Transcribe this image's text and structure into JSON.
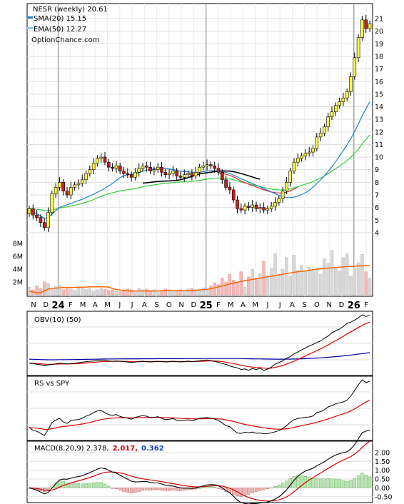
{
  "chart_data": {
    "type": "stock-chart",
    "header": {
      "title": "NESR (weekly) 20.61",
      "source": "OptionChance.com",
      "legend": [
        {
          "name": "SMA(20) 15.15",
          "color": "#1e7fd0"
        },
        {
          "name": "EMA(50) 12.27",
          "color": "#8fd0f0"
        }
      ]
    },
    "price_axis": {
      "min": 3.2,
      "max": 21.8,
      "ticks": [
        "4",
        "5",
        "6",
        "7",
        "8",
        "9",
        "10",
        "11",
        "12",
        "13",
        "14",
        "15",
        "16",
        "17",
        "18",
        "19",
        "20",
        "21"
      ]
    },
    "volume_axis": {
      "max_m": 10,
      "ticks": [
        "2M",
        "4M",
        "6M",
        "8M"
      ]
    },
    "x_labels": [
      {
        "t": "N"
      },
      {
        "t": "D"
      },
      {
        "t": "24",
        "bold": true
      },
      {
        "t": "F"
      },
      {
        "t": "M"
      },
      {
        "t": "A"
      },
      {
        "t": "M"
      },
      {
        "t": "J"
      },
      {
        "t": "J"
      },
      {
        "t": "A"
      },
      {
        "t": "S"
      },
      {
        "t": "O"
      },
      {
        "t": "N"
      },
      {
        "t": "D"
      },
      {
        "t": "25",
        "bold": true
      },
      {
        "t": "F"
      },
      {
        "t": "M"
      },
      {
        "t": "A"
      },
      {
        "t": "M"
      },
      {
        "t": "J"
      },
      {
        "t": "J"
      },
      {
        "t": "A"
      },
      {
        "t": "S"
      },
      {
        "t": "O"
      },
      {
        "t": "N"
      },
      {
        "t": "D"
      },
      {
        "t": "26",
        "bold": true
      },
      {
        "t": "F"
      }
    ],
    "weekly_close": [
      5.9,
      5.4,
      5.2,
      4.8,
      4.4,
      5.6,
      7.1,
      7.6,
      8.0,
      7.3,
      7.0,
      7.6,
      7.8,
      7.9,
      8.2,
      8.7,
      9.0,
      9.5,
      9.9,
      10.0,
      9.6,
      9.2,
      9.1,
      9.3,
      8.9,
      8.7,
      8.6,
      8.4,
      8.8,
      9.1,
      9.3,
      9.2,
      8.9,
      9.0,
      9.2,
      8.8,
      8.6,
      8.7,
      8.9,
      8.5,
      8.4,
      8.6,
      8.7,
      8.5,
      8.8,
      9.2,
      9.3,
      9.4,
      9.3,
      9.1,
      8.8,
      8.2,
      7.6,
      7.4,
      6.6,
      5.9,
      5.8,
      6.1,
      6.0,
      6.2,
      5.9,
      6.0,
      5.8,
      5.9,
      6.1,
      6.4,
      6.7,
      7.3,
      8.0,
      8.9,
      9.6,
      9.9,
      10.1,
      10.3,
      10.4,
      10.7,
      11.6,
      11.9,
      12.4,
      13.2,
      13.6,
      14.1,
      14.4,
      14.7,
      15.2,
      16.4,
      17.9,
      19.5,
      20.9,
      20.2,
      20.6
    ],
    "volume_mil": [
      1.2,
      0.8,
      1.4,
      1.0,
      2.0,
      1.8,
      0.9,
      1.3,
      1.5,
      0.8,
      1.0,
      0.9,
      0.7,
      1.1,
      1.2,
      0.9,
      1.0,
      0.6,
      0.8,
      1.0,
      0.9,
      0.7,
      0.8,
      0.6,
      0.5,
      0.7,
      0.9,
      0.8,
      0.6,
      1.0,
      0.8,
      0.9,
      0.7,
      0.8,
      0.6,
      0.5,
      0.9,
      0.8,
      0.7,
      0.6,
      0.8,
      0.7,
      0.9,
      1.0,
      0.8,
      0.9,
      1.1,
      0.8,
      1.4,
      1.9,
      1.6,
      2.6,
      2.0,
      3.2,
      2.3,
      1.8,
      3.6,
      1.2,
      2.8,
      4.0,
      2.6,
      3.3,
      5.2,
      3.0,
      4.1,
      6.4,
      3.2,
      4.0,
      5.8,
      3.0,
      6.2,
      3.8,
      4.6,
      3.7,
      4.3,
      3.6,
      4.2,
      3.2,
      5.6,
      4.9,
      6.9,
      4.1,
      3.7,
      5.8,
      6.4,
      2.9,
      4.2,
      5.0,
      6.3,
      3.6,
      2.6
    ],
    "volume_avg_mil": [
      0.55,
      0.45,
      0.3,
      0.35,
      0.6,
      0.9,
      1.0,
      1.05,
      1.1,
      1.15,
      1.15,
      1.15,
      1.15,
      1.2,
      1.2,
      1.2,
      1.25,
      1.25,
      1.25,
      1.25,
      1.25,
      1.2,
      1.0,
      0.85,
      0.75,
      0.7,
      0.65,
      0.6,
      0.6,
      0.6,
      0.6,
      0.6,
      0.6,
      0.6,
      0.62,
      0.62,
      0.62,
      0.65,
      0.65,
      0.65,
      0.65,
      0.65,
      0.65,
      0.7,
      0.7,
      0.75,
      0.8,
      0.85,
      0.95,
      1.1,
      1.25,
      1.4,
      1.55,
      1.7,
      1.85,
      1.95,
      2.1,
      2.2,
      2.3,
      2.4,
      2.5,
      2.6,
      2.7,
      2.8,
      2.9,
      3.0,
      3.1,
      3.2,
      3.3,
      3.4,
      3.5,
      3.6,
      3.65,
      3.7,
      3.8,
      3.9,
      4.0,
      4.05,
      4.1,
      4.15,
      4.2,
      4.25,
      4.3,
      4.35,
      4.4,
      4.4,
      4.45,
      4.5,
      4.5,
      4.55,
      4.55
    ],
    "panels": [
      {
        "label": "OBV(10) (50)"
      },
      {
        "label": "RS vs SPY"
      },
      {
        "label": "MACD(8,20,9) 2.378,",
        "values": [
          {
            "text": "2.017,",
            "color": "#d00000"
          },
          {
            "text": "0.362",
            "color": "#1040c0"
          }
        ],
        "axis_ticks": [
          "2.00",
          "1.50",
          "1.00",
          "0.50",
          "0.00",
          "-0.50"
        ],
        "axis_min": -0.75,
        "axis_max": 2.4
      }
    ],
    "colors": {
      "up_candle": "#ffff33",
      "down_candle": "#cc1a1a",
      "sma": "#1e7fd0",
      "ema": "#8fd0f0",
      "sma200": "#000000",
      "green_ma": "#33cc33",
      "volume_avg": "#ff6600",
      "signal": "#dd0000",
      "obv_slow": "#0000aa"
    }
  }
}
